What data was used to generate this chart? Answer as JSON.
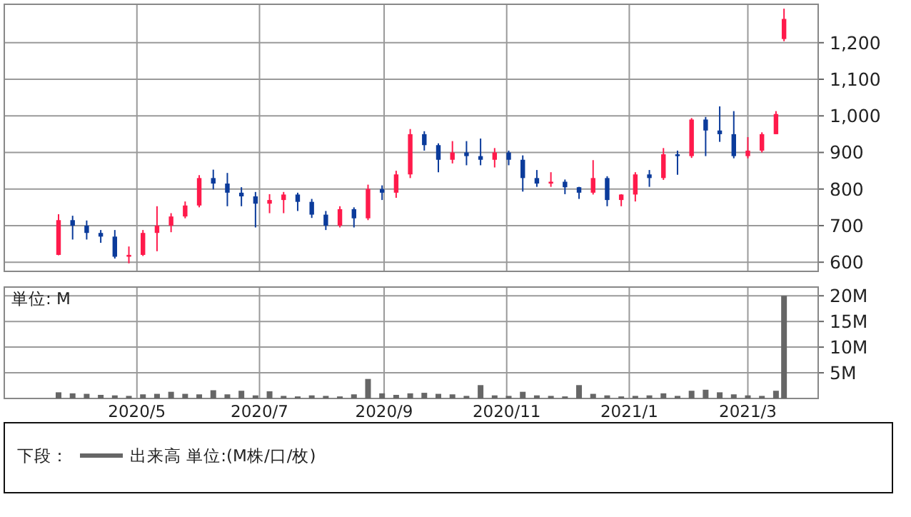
{
  "chart_data": [
    {
      "type": "candlestick",
      "x": [
        "2020-03-23",
        "2020-03-30",
        "2020-04-06",
        "2020-04-13",
        "2020-04-20",
        "2020-04-27",
        "2020-05-04",
        "2020-05-11",
        "2020-05-18",
        "2020-05-25",
        "2020-06-01",
        "2020-06-08",
        "2020-06-15",
        "2020-06-22",
        "2020-06-29",
        "2020-07-06",
        "2020-07-13",
        "2020-07-20",
        "2020-07-27",
        "2020-08-03",
        "2020-08-10",
        "2020-08-17",
        "2020-08-24",
        "2020-08-31",
        "2020-09-07",
        "2020-09-14",
        "2020-09-21",
        "2020-09-28",
        "2020-10-05",
        "2020-10-12",
        "2020-10-19",
        "2020-10-26",
        "2020-11-02",
        "2020-11-09",
        "2020-11-16",
        "2020-11-23",
        "2020-11-30",
        "2020-12-07",
        "2020-12-14",
        "2020-12-21",
        "2020-12-28",
        "2021-01-04",
        "2021-01-11",
        "2021-01-18",
        "2021-01-25",
        "2021-02-01",
        "2021-02-08",
        "2021-02-15",
        "2021-02-22",
        "2021-03-01",
        "2021-03-08",
        "2021-03-15",
        "2021-03-19"
      ],
      "ohlc": [
        [
          620,
          731,
          619,
          715
        ],
        [
          715,
          727,
          662,
          700
        ],
        [
          700,
          714,
          662,
          680
        ],
        [
          680,
          688,
          653,
          670
        ],
        [
          670,
          688,
          610,
          615
        ],
        [
          615,
          643,
          597,
          620
        ],
        [
          620,
          688,
          617,
          680
        ],
        [
          680,
          753,
          630,
          700
        ],
        [
          700,
          734,
          682,
          725
        ],
        [
          725,
          766,
          720,
          755
        ],
        [
          755,
          838,
          750,
          830
        ],
        [
          830,
          853,
          799,
          815
        ],
        [
          815,
          844,
          753,
          790
        ],
        [
          790,
          805,
          753,
          780
        ],
        [
          780,
          792,
          695,
          760
        ],
        [
          760,
          786,
          734,
          770
        ],
        [
          770,
          792,
          734,
          785
        ],
        [
          785,
          790,
          740,
          765
        ],
        [
          765,
          773,
          721,
          730
        ],
        [
          730,
          740,
          688,
          700
        ],
        [
          700,
          753,
          695,
          745
        ],
        [
          745,
          750,
          695,
          720
        ],
        [
          720,
          812,
          715,
          800
        ],
        [
          800,
          810,
          770,
          790
        ],
        [
          790,
          850,
          776,
          840
        ],
        [
          840,
          964,
          830,
          950
        ],
        [
          950,
          958,
          905,
          920
        ],
        [
          920,
          925,
          846,
          880
        ],
        [
          880,
          931,
          870,
          900
        ],
        [
          900,
          931,
          865,
          890
        ],
        [
          890,
          938,
          865,
          880
        ],
        [
          880,
          912,
          859,
          900
        ],
        [
          900,
          905,
          865,
          880
        ],
        [
          880,
          892,
          793,
          830
        ],
        [
          830,
          852,
          806,
          815
        ],
        [
          815,
          846,
          806,
          820
        ],
        [
          820,
          826,
          786,
          805
        ],
        [
          805,
          806,
          773,
          790
        ],
        [
          790,
          879,
          785,
          830
        ],
        [
          830,
          835,
          753,
          770
        ],
        [
          770,
          786,
          753,
          785
        ],
        [
          785,
          846,
          766,
          840
        ],
        [
          840,
          852,
          806,
          830
        ],
        [
          830,
          912,
          825,
          895
        ],
        [
          895,
          905,
          839,
          890
        ],
        [
          890,
          994,
          885,
          990
        ],
        [
          990,
          997,
          890,
          960
        ],
        [
          960,
          1026,
          929,
          950
        ],
        [
          950,
          1013,
          884,
          890
        ],
        [
          890,
          942,
          884,
          905
        ],
        [
          905,
          955,
          900,
          950
        ],
        [
          950,
          1013,
          950,
          1005
        ],
        [
          1210,
          1293,
          1204,
          1265
        ]
      ],
      "xticks": [
        {
          "value": "2020-05-01",
          "label": null
        },
        {
          "value": "2020-07-01",
          "label": null
        },
        {
          "value": "2020-09-01",
          "label": null
        },
        {
          "value": "2020-11-01",
          "label": null
        },
        {
          "value": "2021-01-01",
          "label": null
        },
        {
          "value": "2021-03-01",
          "label": null
        }
      ],
      "colors": [
        "#ff1a4b",
        "#0b3b9b",
        "#0b3b9b",
        "#0b3b9b",
        "#0b3b9b",
        "#ff1a4b",
        "#ff1a4b",
        "#ff1a4b",
        "#ff1a4b",
        "#ff1a4b",
        "#ff1a4b",
        "#0b3b9b",
        "#0b3b9b",
        "#0b3b9b",
        "#0b3b9b",
        "#ff1a4b",
        "#ff1a4b",
        "#0b3b9b",
        "#0b3b9b",
        "#0b3b9b",
        "#ff1a4b",
        "#0b3b9b",
        "#ff1a4b",
        "#0b3b9b",
        "#ff1a4b",
        "#ff1a4b",
        "#0b3b9b",
        "#0b3b9b",
        "#ff1a4b",
        "#0b3b9b",
        "#0b3b9b",
        "#ff1a4b",
        "#0b3b9b",
        "#0b3b9b",
        "#0b3b9b",
        "#ff1a4b",
        "#0b3b9b",
        "#0b3b9b",
        "#ff1a4b",
        "#0b3b9b",
        "#ff1a4b",
        "#ff1a4b",
        "#0b3b9b",
        "#ff1a4b",
        "#0b3b9b",
        "#ff1a4b",
        "#0b3b9b",
        "#0b3b9b",
        "#0b3b9b",
        "#ff1a4b",
        "#ff1a4b",
        "#ff1a4b",
        "#ff1a4b"
      ],
      "xlim": [
        "2020-02-25",
        "2021-04-05"
      ],
      "ylim": [
        575,
        1305
      ],
      "yticks": [
        600,
        700,
        800,
        900,
        {
          "value": 1000,
          "label": "1,000"
        },
        {
          "value": 1100,
          "label": "1,100"
        },
        {
          "value": 1200,
          "label": "1,200"
        }
      ],
      "tick_labels": "y",
      "grid": true
    },
    {
      "type": "bar",
      "x": [
        "2020-03-23",
        "2020-03-30",
        "2020-04-06",
        "2020-04-13",
        "2020-04-20",
        "2020-04-27",
        "2020-05-04",
        "2020-05-11",
        "2020-05-18",
        "2020-05-25",
        "2020-06-01",
        "2020-06-08",
        "2020-06-15",
        "2020-06-22",
        "2020-06-29",
        "2020-07-06",
        "2020-07-13",
        "2020-07-20",
        "2020-07-27",
        "2020-08-03",
        "2020-08-10",
        "2020-08-17",
        "2020-08-24",
        "2020-08-31",
        "2020-09-07",
        "2020-09-14",
        "2020-09-21",
        "2020-09-28",
        "2020-10-05",
        "2020-10-12",
        "2020-10-19",
        "2020-10-26",
        "2020-11-02",
        "2020-11-09",
        "2020-11-16",
        "2020-11-23",
        "2020-11-30",
        "2020-12-07",
        "2020-12-14",
        "2020-12-21",
        "2020-12-28",
        "2021-01-04",
        "2021-01-11",
        "2021-01-18",
        "2021-01-25",
        "2021-02-01",
        "2021-02-08",
        "2021-02-15",
        "2021-02-22",
        "2021-03-01",
        "2021-03-08",
        "2021-03-15",
        "2021-03-19"
      ],
      "series": [
        {
          "name": "出来高 単位:(M株/口/枚)",
          "color": "#666666",
          "values": [
            1.2,
            1.0,
            0.9,
            0.7,
            0.6,
            0.5,
            0.8,
            0.9,
            1.3,
            0.9,
            0.8,
            1.6,
            0.8,
            1.5,
            0.6,
            1.4,
            0.5,
            0.4,
            0.6,
            0.5,
            0.4,
            0.8,
            3.8,
            1.0,
            0.7,
            1.0,
            1.1,
            0.9,
            0.8,
            0.5,
            2.6,
            0.6,
            0.5,
            1.3,
            0.6,
            0.5,
            0.4,
            2.6,
            0.9,
            0.6,
            0.4,
            0.5,
            0.6,
            1.0,
            0.5,
            1.5,
            1.7,
            1.2,
            0.8,
            0.6,
            0.5,
            1.5,
            20.0
          ]
        }
      ],
      "ylabel": "単位: M",
      "legend_title": "下段：",
      "legend": "bottom",
      "xlim": [
        "2020-02-25",
        "2021-04-05"
      ],
      "xticks": [
        {
          "value": "2020-05-01",
          "label": "2020/5"
        },
        {
          "value": "2020-07-01",
          "label": "2020/7"
        },
        {
          "value": "2020-09-01",
          "label": "2020/9"
        },
        {
          "value": "2020-11-01",
          "label": "2020/11"
        },
        {
          "value": "2021-01-01",
          "label": "2021/1"
        },
        {
          "value": "2021-03-01",
          "label": "2021/3"
        }
      ],
      "ylim": [
        0,
        21.7
      ],
      "yticks": [
        {
          "value": 5,
          "label": "5M"
        },
        {
          "value": 10,
          "label": "10M"
        },
        {
          "value": 15,
          "label": "15M"
        },
        {
          "value": 20,
          "label": "20M"
        }
      ],
      "grid": true
    }
  ]
}
